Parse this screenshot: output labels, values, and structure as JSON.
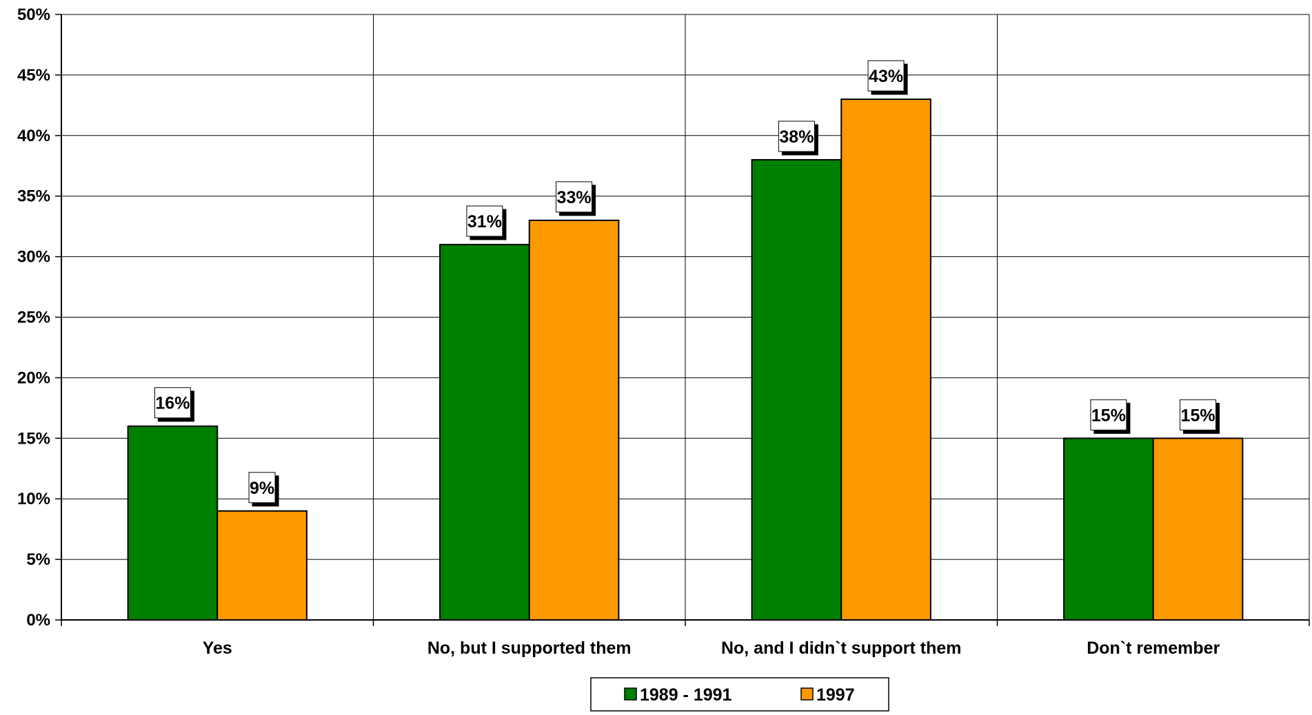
{
  "chart_data": {
    "type": "bar",
    "title": "",
    "xlabel": "",
    "ylabel": "",
    "categories": [
      "Yes",
      "No, but I supported them",
      "No, and I didn`t support them",
      "Don`t remember"
    ],
    "series": [
      {
        "name": "1989 - 1991",
        "color": "#008000",
        "values": [
          16,
          31,
          38,
          15
        ],
        "labels": [
          "16%",
          "31%",
          "38%",
          "15%"
        ]
      },
      {
        "name": "1997",
        "color": "#FF9900",
        "values": [
          9,
          33,
          43,
          15
        ],
        "labels": [
          "9%",
          "33%",
          "43%",
          "15%"
        ]
      }
    ],
    "ylim": [
      0,
      50
    ],
    "ytick_step": 5,
    "yticks": [
      "0%",
      "5%",
      "10%",
      "15%",
      "20%",
      "25%",
      "30%",
      "35%",
      "40%",
      "45%",
      "50%"
    ],
    "grid": true,
    "legend_position": "bottom-center",
    "data_labels": true
  }
}
